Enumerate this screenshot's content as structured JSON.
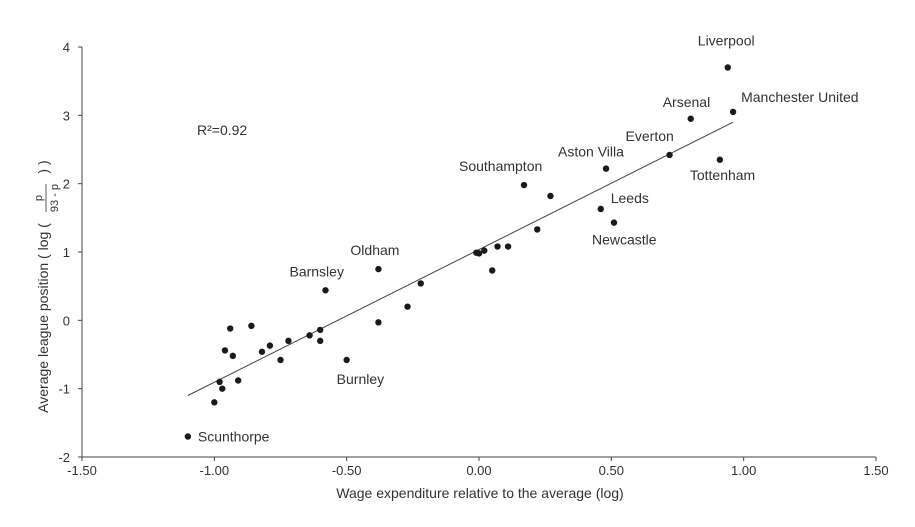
{
  "chart_data": {
    "type": "scatter",
    "title": "",
    "xlabel": "Wage expenditure relative to the average (log)",
    "ylabel": "Average league position ( log ( p / 93 - p ) )",
    "ylabel_parts": {
      "main": "Average league position ( log (",
      "frac_num": "p",
      "frac_den": "93 - p",
      "close": ") )"
    },
    "xlim": [
      -1.5,
      1.5
    ],
    "ylim": [
      -2,
      4
    ],
    "x_ticks": [
      -1.5,
      -1.0,
      -0.5,
      0.0,
      0.5,
      1.0,
      1.5
    ],
    "x_tick_labels": [
      "-1.50",
      "-1.00",
      "-0.50",
      "0.00",
      "0.50",
      "1.00",
      "1.50"
    ],
    "y_ticks": [
      -2,
      -1,
      0,
      1,
      2,
      3,
      4
    ],
    "y_tick_labels": [
      "-2",
      "-1",
      "0",
      "1",
      "2",
      "3",
      "4"
    ],
    "grid": false,
    "annotation": "R²=0.92",
    "trendline": {
      "x": [
        -1.1,
        0.96
      ],
      "y": [
        -1.1,
        2.9
      ]
    },
    "points": [
      {
        "x": 0.94,
        "y": 3.7,
        "label": "Liverpool"
      },
      {
        "x": 0.96,
        "y": 3.05,
        "label": "Manchester United"
      },
      {
        "x": 0.8,
        "y": 2.95,
        "label": "Arsenal"
      },
      {
        "x": 0.72,
        "y": 2.42,
        "label": "Everton"
      },
      {
        "x": 0.91,
        "y": 2.35,
        "label": "Tottenham"
      },
      {
        "x": 0.48,
        "y": 2.22,
        "label": "Aston Villa"
      },
      {
        "x": 0.17,
        "y": 1.98,
        "label": "Southampton"
      },
      {
        "x": 0.46,
        "y": 1.63,
        "label": "Leeds"
      },
      {
        "x": 0.51,
        "y": 1.43,
        "label": "Newcastle"
      },
      {
        "x": -0.38,
        "y": 0.75,
        "label": "Oldham"
      },
      {
        "x": -0.58,
        "y": 0.44,
        "label": "Barnsley"
      },
      {
        "x": -0.5,
        "y": -0.58,
        "label": "Burnley"
      },
      {
        "x": -1.1,
        "y": -1.7,
        "label": "Scunthorpe"
      },
      {
        "x": 0.27,
        "y": 1.82,
        "label": ""
      },
      {
        "x": 0.22,
        "y": 1.33,
        "label": ""
      },
      {
        "x": 0.11,
        "y": 1.08,
        "label": ""
      },
      {
        "x": 0.07,
        "y": 1.08,
        "label": ""
      },
      {
        "x": 0.05,
        "y": 0.73,
        "label": ""
      },
      {
        "x": 0.02,
        "y": 1.02,
        "label": ""
      },
      {
        "x": 0.0,
        "y": 0.98,
        "label": ""
      },
      {
        "x": -0.01,
        "y": 0.99,
        "label": ""
      },
      {
        "x": -0.22,
        "y": 0.54,
        "label": ""
      },
      {
        "x": -0.27,
        "y": 0.2,
        "label": ""
      },
      {
        "x": -0.38,
        "y": -0.03,
        "label": ""
      },
      {
        "x": -0.6,
        "y": -0.14,
        "label": ""
      },
      {
        "x": -0.6,
        "y": -0.3,
        "label": ""
      },
      {
        "x": -0.64,
        "y": -0.22,
        "label": ""
      },
      {
        "x": -0.72,
        "y": -0.3,
        "label": ""
      },
      {
        "x": -0.75,
        "y": -0.58,
        "label": ""
      },
      {
        "x": -0.79,
        "y": -0.37,
        "label": ""
      },
      {
        "x": -0.82,
        "y": -0.46,
        "label": ""
      },
      {
        "x": -0.86,
        "y": -0.08,
        "label": ""
      },
      {
        "x": -0.91,
        "y": -0.88,
        "label": ""
      },
      {
        "x": -0.93,
        "y": -0.52,
        "label": ""
      },
      {
        "x": -0.94,
        "y": -0.12,
        "label": ""
      },
      {
        "x": -0.96,
        "y": -0.44,
        "label": ""
      },
      {
        "x": -0.97,
        "y": -1.0,
        "label": ""
      },
      {
        "x": -0.98,
        "y": -0.9,
        "label": ""
      },
      {
        "x": -1.0,
        "y": -1.2,
        "label": ""
      }
    ]
  }
}
